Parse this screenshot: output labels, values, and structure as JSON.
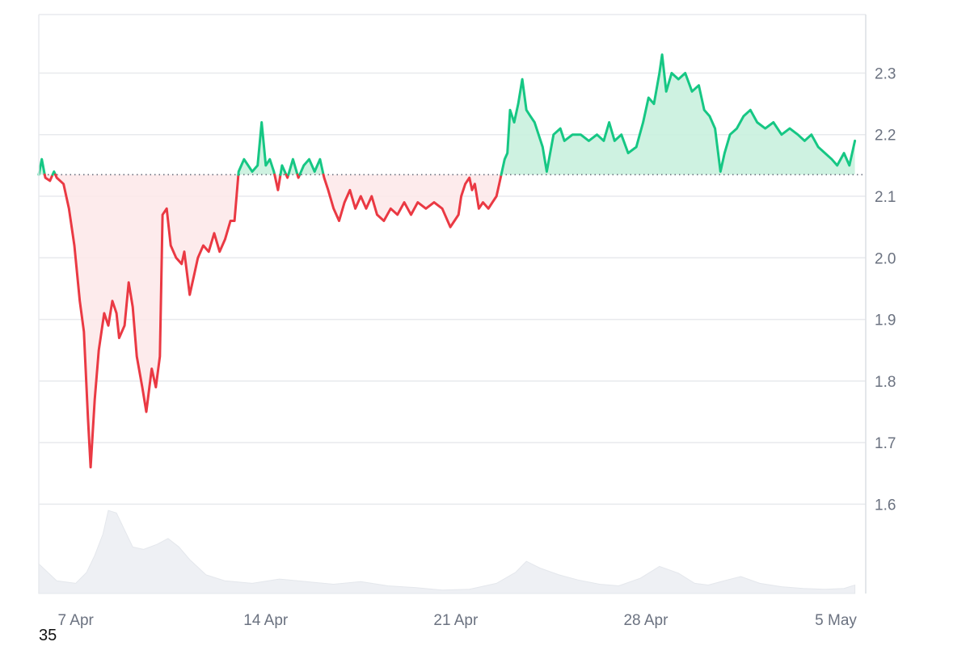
{
  "chart_data": {
    "type": "line",
    "title": "",
    "xlabel": "",
    "ylabel": "",
    "reference_value": 2.135,
    "ylim": [
      1.455,
      2.395
    ],
    "grid": true,
    "x_ticks": [
      "7 Apr",
      "14 Apr",
      "21 Apr",
      "28 Apr",
      "5 May"
    ],
    "x_tick_days": [
      1,
      8,
      15,
      22,
      29
    ],
    "xlim_days": [
      -0.36,
      30.1
    ],
    "y_ticks": [
      1.6,
      1.7,
      1.8,
      1.9,
      2.0,
      2.1,
      2.2,
      2.3
    ],
    "y_tick_labels": [
      "1.6",
      "1.7",
      "1.8",
      "1.9",
      "2.0",
      "2.1",
      "2.2",
      "2.3"
    ],
    "x_unit_note": "day offsets counted from 6 Apr",
    "series": [
      {
        "values": [
          [
            -0.36,
            2.135
          ],
          [
            -0.25,
            2.16
          ],
          [
            -0.12,
            2.13
          ],
          [
            0.05,
            2.125
          ],
          [
            0.2,
            2.14
          ],
          [
            0.3,
            2.13
          ],
          [
            0.55,
            2.12
          ],
          [
            0.75,
            2.08
          ],
          [
            0.95,
            2.02
          ],
          [
            1.15,
            1.93
          ],
          [
            1.3,
            1.88
          ],
          [
            1.45,
            1.74
          ],
          [
            1.55,
            1.66
          ],
          [
            1.7,
            1.77
          ],
          [
            1.85,
            1.85
          ],
          [
            2.05,
            1.91
          ],
          [
            2.2,
            1.89
          ],
          [
            2.35,
            1.93
          ],
          [
            2.5,
            1.91
          ],
          [
            2.6,
            1.87
          ],
          [
            2.8,
            1.89
          ],
          [
            2.95,
            1.96
          ],
          [
            3.1,
            1.92
          ],
          [
            3.25,
            1.84
          ],
          [
            3.45,
            1.79
          ],
          [
            3.6,
            1.75
          ],
          [
            3.8,
            1.82
          ],
          [
            3.95,
            1.79
          ],
          [
            4.1,
            1.84
          ],
          [
            4.2,
            2.07
          ],
          [
            4.35,
            2.08
          ],
          [
            4.5,
            2.02
          ],
          [
            4.7,
            2.0
          ],
          [
            4.9,
            1.99
          ],
          [
            5.0,
            2.01
          ],
          [
            5.2,
            1.94
          ],
          [
            5.35,
            1.97
          ],
          [
            5.5,
            2.0
          ],
          [
            5.7,
            2.02
          ],
          [
            5.9,
            2.01
          ],
          [
            6.1,
            2.04
          ],
          [
            6.3,
            2.01
          ],
          [
            6.5,
            2.03
          ],
          [
            6.7,
            2.06
          ],
          [
            6.85,
            2.06
          ],
          [
            7.0,
            2.14
          ],
          [
            7.2,
            2.16
          ],
          [
            7.5,
            2.14
          ],
          [
            7.7,
            2.15
          ],
          [
            7.85,
            2.22
          ],
          [
            8.0,
            2.15
          ],
          [
            8.15,
            2.16
          ],
          [
            8.3,
            2.14
          ],
          [
            8.45,
            2.11
          ],
          [
            8.6,
            2.15
          ],
          [
            8.8,
            2.13
          ],
          [
            9.0,
            2.16
          ],
          [
            9.2,
            2.13
          ],
          [
            9.4,
            2.15
          ],
          [
            9.6,
            2.16
          ],
          [
            9.8,
            2.14
          ],
          [
            10.0,
            2.16
          ],
          [
            10.15,
            2.13
          ],
          [
            10.3,
            2.11
          ],
          [
            10.5,
            2.08
          ],
          [
            10.7,
            2.06
          ],
          [
            10.9,
            2.09
          ],
          [
            11.1,
            2.11
          ],
          [
            11.3,
            2.08
          ],
          [
            11.5,
            2.1
          ],
          [
            11.7,
            2.08
          ],
          [
            11.9,
            2.1
          ],
          [
            12.1,
            2.07
          ],
          [
            12.35,
            2.06
          ],
          [
            12.6,
            2.08
          ],
          [
            12.85,
            2.07
          ],
          [
            13.1,
            2.09
          ],
          [
            13.35,
            2.07
          ],
          [
            13.6,
            2.09
          ],
          [
            13.9,
            2.08
          ],
          [
            14.2,
            2.09
          ],
          [
            14.5,
            2.08
          ],
          [
            14.8,
            2.05
          ],
          [
            14.95,
            2.06
          ],
          [
            15.1,
            2.07
          ],
          [
            15.2,
            2.1
          ],
          [
            15.35,
            2.12
          ],
          [
            15.5,
            2.13
          ],
          [
            15.6,
            2.11
          ],
          [
            15.7,
            2.12
          ],
          [
            15.85,
            2.08
          ],
          [
            16.0,
            2.09
          ],
          [
            16.2,
            2.08
          ],
          [
            16.35,
            2.09
          ],
          [
            16.5,
            2.1
          ],
          [
            16.6,
            2.12
          ],
          [
            16.8,
            2.16
          ],
          [
            16.9,
            2.17
          ],
          [
            17.0,
            2.24
          ],
          [
            17.15,
            2.22
          ],
          [
            17.3,
            2.25
          ],
          [
            17.45,
            2.29
          ],
          [
            17.6,
            2.24
          ],
          [
            17.75,
            2.23
          ],
          [
            17.9,
            2.22
          ],
          [
            18.05,
            2.2
          ],
          [
            18.2,
            2.18
          ],
          [
            18.35,
            2.14
          ],
          [
            18.6,
            2.2
          ],
          [
            18.85,
            2.21
          ],
          [
            19.0,
            2.19
          ],
          [
            19.3,
            2.2
          ],
          [
            19.6,
            2.2
          ],
          [
            19.9,
            2.19
          ],
          [
            20.2,
            2.2
          ],
          [
            20.45,
            2.19
          ],
          [
            20.65,
            2.22
          ],
          [
            20.85,
            2.19
          ],
          [
            21.1,
            2.2
          ],
          [
            21.35,
            2.17
          ],
          [
            21.65,
            2.18
          ],
          [
            21.9,
            2.22
          ],
          [
            22.1,
            2.26
          ],
          [
            22.3,
            2.25
          ],
          [
            22.5,
            2.3
          ],
          [
            22.6,
            2.33
          ],
          [
            22.75,
            2.27
          ],
          [
            22.95,
            2.3
          ],
          [
            23.2,
            2.29
          ],
          [
            23.45,
            2.3
          ],
          [
            23.7,
            2.27
          ],
          [
            23.95,
            2.28
          ],
          [
            24.15,
            2.24
          ],
          [
            24.35,
            2.23
          ],
          [
            24.55,
            2.21
          ],
          [
            24.75,
            2.14
          ],
          [
            24.9,
            2.17
          ],
          [
            25.1,
            2.2
          ],
          [
            25.35,
            2.21
          ],
          [
            25.6,
            2.23
          ],
          [
            25.85,
            2.24
          ],
          [
            26.1,
            2.22
          ],
          [
            26.4,
            2.21
          ],
          [
            26.7,
            2.22
          ],
          [
            27.0,
            2.2
          ],
          [
            27.3,
            2.21
          ],
          [
            27.6,
            2.2
          ],
          [
            27.85,
            2.19
          ],
          [
            28.1,
            2.2
          ],
          [
            28.35,
            2.18
          ],
          [
            28.6,
            2.17
          ],
          [
            28.85,
            2.16
          ],
          [
            29.05,
            2.15
          ],
          [
            29.3,
            2.17
          ],
          [
            29.5,
            2.15
          ],
          [
            29.7,
            2.19
          ]
        ]
      }
    ],
    "volume": {
      "values": [
        [
          -0.36,
          0.35
        ],
        [
          0.3,
          0.15
        ],
        [
          1.0,
          0.12
        ],
        [
          1.4,
          0.25
        ],
        [
          1.7,
          0.45
        ],
        [
          2.0,
          0.7
        ],
        [
          2.2,
          0.98
        ],
        [
          2.5,
          0.95
        ],
        [
          2.8,
          0.75
        ],
        [
          3.1,
          0.55
        ],
        [
          3.5,
          0.52
        ],
        [
          4.0,
          0.58
        ],
        [
          4.4,
          0.65
        ],
        [
          4.8,
          0.55
        ],
        [
          5.2,
          0.4
        ],
        [
          5.8,
          0.22
        ],
        [
          6.5,
          0.15
        ],
        [
          7.5,
          0.12
        ],
        [
          8.5,
          0.17
        ],
        [
          9.5,
          0.14
        ],
        [
          10.5,
          0.11
        ],
        [
          11.5,
          0.14
        ],
        [
          12.5,
          0.09
        ],
        [
          13.5,
          0.07
        ],
        [
          14.5,
          0.04
        ],
        [
          15.5,
          0.05
        ],
        [
          16.5,
          0.12
        ],
        [
          17.2,
          0.25
        ],
        [
          17.6,
          0.38
        ],
        [
          18.1,
          0.3
        ],
        [
          18.8,
          0.22
        ],
        [
          19.5,
          0.16
        ],
        [
          20.3,
          0.11
        ],
        [
          21.0,
          0.09
        ],
        [
          21.8,
          0.18
        ],
        [
          22.5,
          0.32
        ],
        [
          23.2,
          0.24
        ],
        [
          23.8,
          0.12
        ],
        [
          24.3,
          0.1
        ],
        [
          25.0,
          0.16
        ],
        [
          25.5,
          0.2
        ],
        [
          26.2,
          0.12
        ],
        [
          27.0,
          0.08
        ],
        [
          27.8,
          0.06
        ],
        [
          28.6,
          0.05
        ],
        [
          29.3,
          0.06
        ],
        [
          29.7,
          0.1
        ]
      ]
    }
  },
  "footer": {
    "corner_label": "35"
  },
  "colors": {
    "up_line": "#16c784",
    "up_fill": "#c9f1de",
    "down_line": "#ea3943",
    "down_fill": "#fde8e9",
    "grid": "#e8eaed",
    "baseline": "#6b7280",
    "volume": "#eef0f4",
    "axis_text": "#6b7280"
  }
}
